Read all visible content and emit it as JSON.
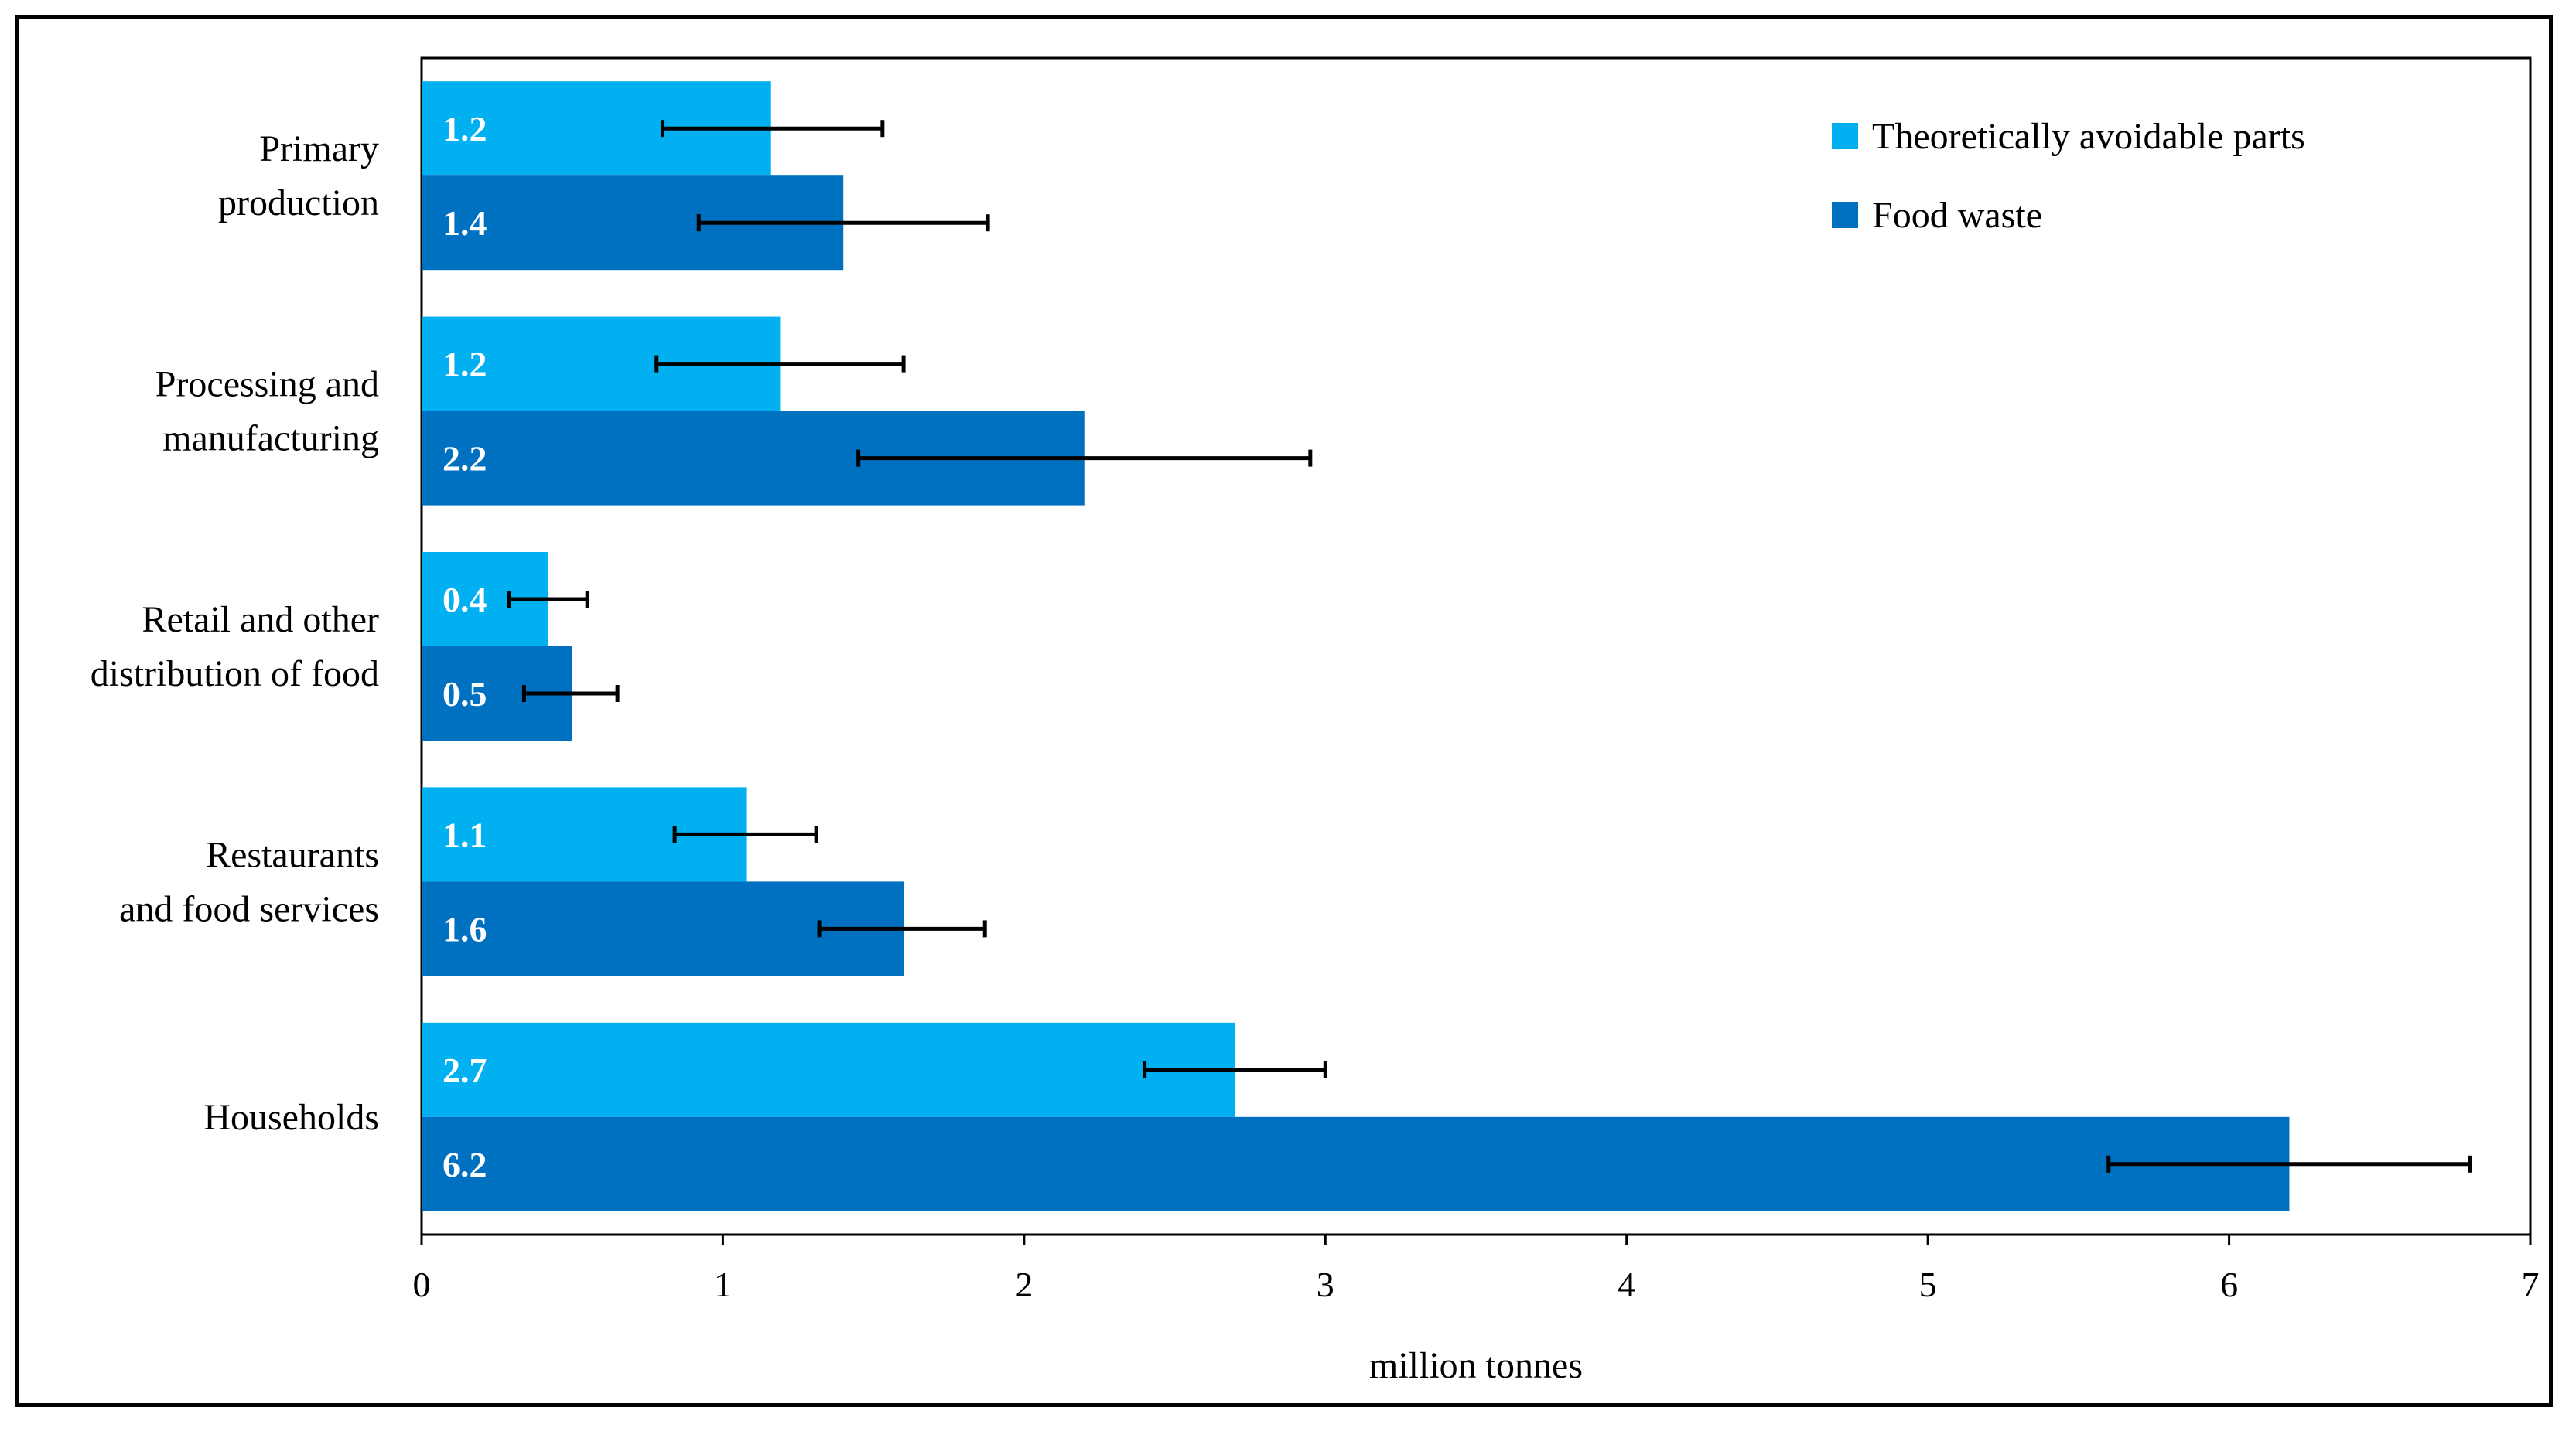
{
  "chart_data": {
    "type": "bar",
    "orientation": "horizontal",
    "categories": [
      [
        "Primary",
        "production"
      ],
      [
        "Processing and",
        "manufacturing"
      ],
      [
        "Retail and other",
        "distribution of food"
      ],
      [
        "Restaurants",
        "and food services"
      ],
      [
        "Households"
      ]
    ],
    "series": [
      {
        "name": "Theoretically avoidable parts",
        "color": "#00b0f0",
        "values": [
          1.16,
          1.19,
          0.42,
          1.08,
          2.7
        ],
        "labels": [
          "1.2",
          "1.2",
          "0.4",
          "1.1",
          "2.7"
        ],
        "err_low": [
          0.8,
          0.78,
          0.29,
          0.84,
          2.4
        ],
        "err_high": [
          1.53,
          1.6,
          0.55,
          1.31,
          3.0
        ]
      },
      {
        "name": "Food waste",
        "color": "#0070c0",
        "values": [
          1.4,
          2.2,
          0.5,
          1.6,
          6.2
        ],
        "labels": [
          "1.4",
          "2.2",
          "0.5",
          "1.6",
          "6.2"
        ],
        "err_low": [
          0.92,
          1.45,
          0.34,
          1.32,
          5.6
        ],
        "err_high": [
          1.88,
          2.95,
          0.65,
          1.87,
          6.8
        ]
      }
    ],
    "xlabel": "million tonnes",
    "xlim": [
      0,
      7
    ],
    "xticks": [
      "0",
      "1",
      "2",
      "3",
      "4",
      "5",
      "6",
      "7"
    ],
    "legend_position": "top-right"
  }
}
